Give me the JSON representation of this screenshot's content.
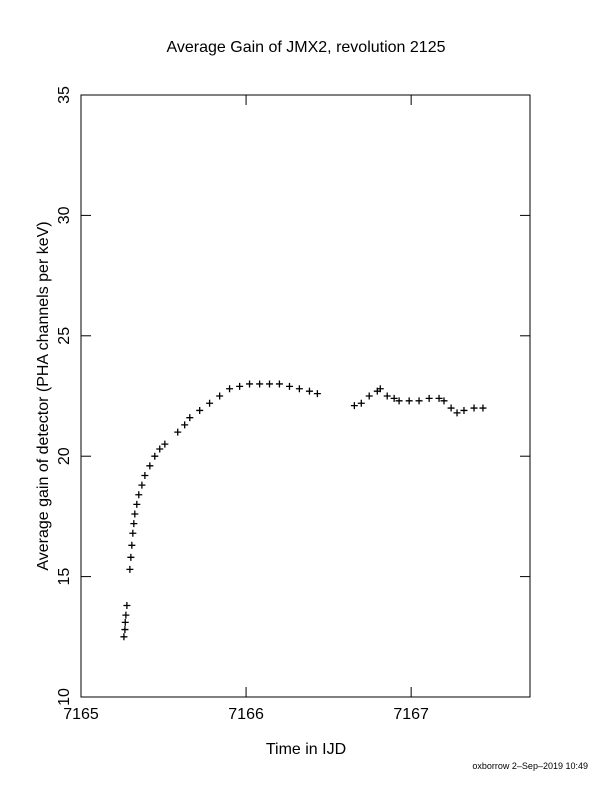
{
  "chart_data": {
    "type": "scatter",
    "title": "Average Gain of JMX2, revolution 2125",
    "x_label": "Time in IJD",
    "y_label": "Average gain of detector (PHA channels per keV)",
    "footer": "oxborrow  2–Sep–2019 10:49",
    "color": "#000000",
    "xlim": [
      7165,
      7167.72
    ],
    "ylim": [
      10,
      35
    ],
    "xticks": [
      7165,
      7166,
      7167
    ],
    "yticks": [
      10,
      15,
      20,
      25,
      30,
      35
    ],
    "grid": false,
    "x": [
      7165.26,
      7165.266,
      7165.268,
      7165.272,
      7165.278,
      7165.296,
      7165.302,
      7165.308,
      7165.314,
      7165.32,
      7165.326,
      7165.338,
      7165.35,
      7165.369,
      7165.387,
      7165.417,
      7165.447,
      7165.477,
      7165.508,
      7165.586,
      7165.628,
      7165.659,
      7165.719,
      7165.779,
      7165.84,
      7165.9,
      7165.961,
      7166.021,
      7166.082,
      7166.142,
      7166.202,
      7166.263,
      7166.323,
      7166.384,
      7166.432,
      7166.656,
      7166.698,
      7166.746,
      7166.795,
      7166.813,
      7166.855,
      7166.897,
      7166.927,
      7166.988,
      7167.048,
      7167.109,
      7167.169,
      7167.199,
      7167.242,
      7167.278,
      7167.32,
      7167.381,
      7167.435
    ],
    "values": [
      12.5,
      12.8,
      13.1,
      13.4,
      13.8,
      15.3,
      15.8,
      16.3,
      16.8,
      17.2,
      17.6,
      18.0,
      18.4,
      18.8,
      19.2,
      19.6,
      20.0,
      20.3,
      20.5,
      21.0,
      21.3,
      21.6,
      21.9,
      22.2,
      22.5,
      22.8,
      22.9,
      23.0,
      23.0,
      23.0,
      23.0,
      22.9,
      22.8,
      22.7,
      22.6,
      22.1,
      22.2,
      22.5,
      22.7,
      22.8,
      22.5,
      22.4,
      22.3,
      22.3,
      22.3,
      22.4,
      22.4,
      22.3,
      22.0,
      21.8,
      21.9,
      22.0,
      22.0
    ]
  }
}
